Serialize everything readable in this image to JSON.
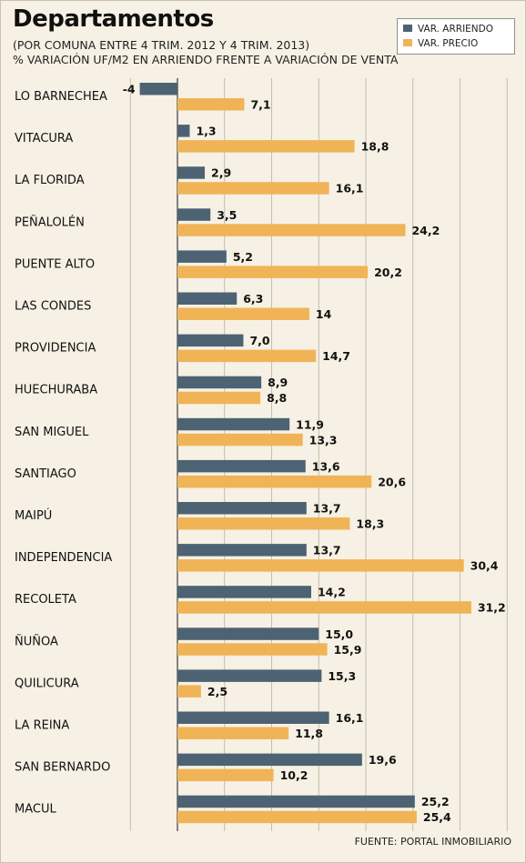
{
  "title": "Departamentos",
  "subtitle_line1": "(POR COMUNA ENTRE 4 TRIM. 2012 Y 4 TRIM. 2013)",
  "subtitle_line2": "% VARIACIÓN UF/M2 EN ARRIENDO FRENTE A VARIACIÓN DE VENTA",
  "source": "FUENTE: PORTAL INMOBILIARIO",
  "colors": {
    "arriendo": "#4d6374",
    "precio": "#f0b457",
    "background": "#f6f1e4",
    "grid": "#bdb7a8"
  },
  "chart_data": {
    "type": "bar",
    "orientation": "horizontal",
    "title": "Departamentos",
    "legend_position": "top-right",
    "grid": true,
    "xlim": [
      -5,
      35
    ],
    "categories": [
      "LO BARNECHEA",
      "VITACURA",
      "LA FLORIDA",
      "PEÑALOLÉN",
      "PUENTE ALTO",
      "LAS CONDES",
      "PROVIDENCIA",
      "HUECHURABA",
      "SAN MIGUEL",
      "SANTIAGO",
      "MAIPÚ",
      "INDEPENDENCIA",
      "RECOLETA",
      "ÑUÑOA",
      "QUILICURA",
      "LA REINA",
      "SAN BERNARDO",
      "MACUL"
    ],
    "series": [
      {
        "name": "VAR. ARRIENDO",
        "values": [
          -4,
          1.3,
          2.9,
          3.5,
          5.2,
          6.3,
          7.0,
          8.9,
          11.9,
          13.6,
          13.7,
          13.7,
          14.2,
          15.0,
          15.3,
          16.1,
          19.6,
          25.2
        ],
        "labels": [
          "-4",
          "1,3",
          "2,9",
          "3,5",
          "5,2",
          "6,3",
          "7,0",
          "8,9",
          "11,9",
          "13,6",
          "13,7",
          "13,7",
          "14,2",
          "15,0",
          "15,3",
          "16,1",
          "19,6",
          "25,2"
        ]
      },
      {
        "name": "VAR. PRECIO",
        "values": [
          7.1,
          18.8,
          16.1,
          24.2,
          20.2,
          14,
          14.7,
          8.8,
          13.3,
          20.6,
          18.3,
          30.4,
          31.2,
          15.9,
          2.5,
          11.8,
          10.2,
          25.4
        ],
        "labels": [
          "7,1",
          "18,8",
          "16,1",
          "24,2",
          "20,2",
          "14",
          "14,7",
          "8,8",
          "13,3",
          "20,6",
          "18,3",
          "30,4",
          "31,2",
          "15,9",
          "2,5",
          "11,8",
          "10,2",
          "25,4"
        ]
      }
    ]
  }
}
